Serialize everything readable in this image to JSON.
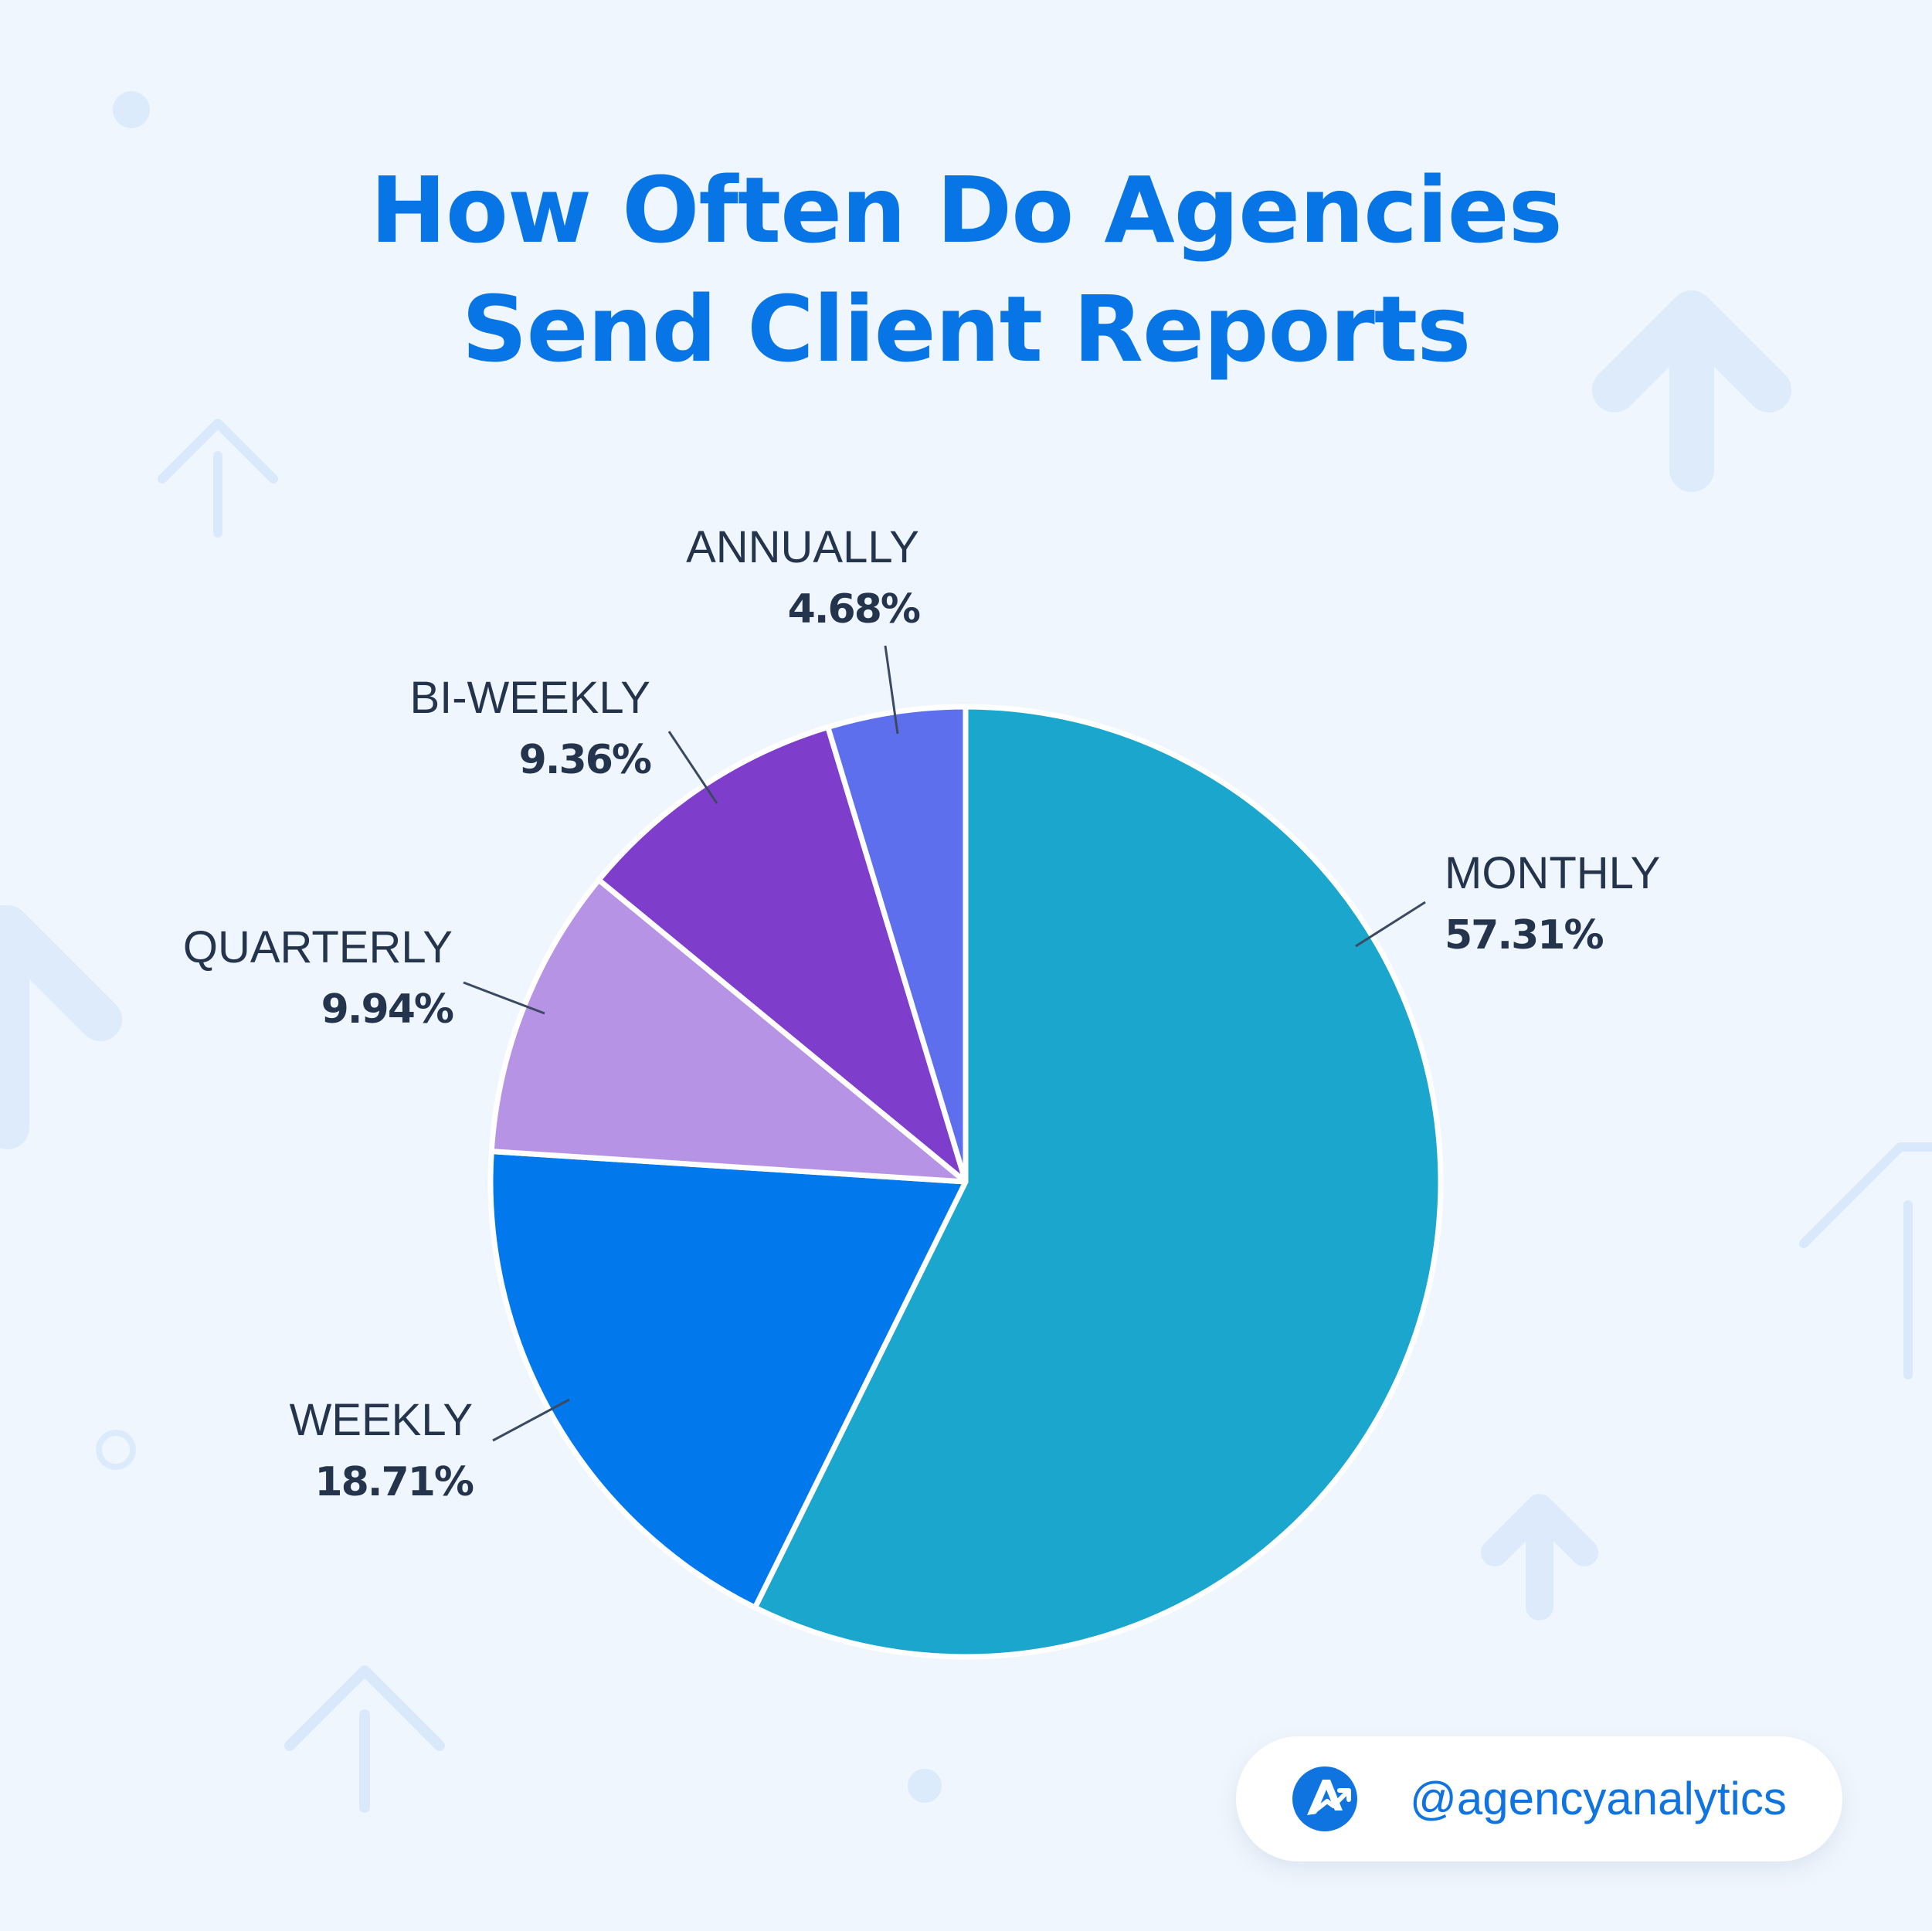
{
  "chart_data": {
    "type": "pie",
    "title_lines": [
      "How Often Do Agencies",
      "Send Client Reports"
    ],
    "slices": [
      {
        "label": "MONTHLY",
        "value": 57.31,
        "display": "57.31%",
        "color": "#1ba6cd"
      },
      {
        "label": "WEEKLY",
        "value": 18.71,
        "display": "18.71%",
        "color": "#0178ec"
      },
      {
        "label": "QUARTERLY",
        "value": 9.94,
        "display": "9.94%",
        "color": "#b693e4"
      },
      {
        "label": "BI-WEEKLY",
        "value": 9.36,
        "display": "9.36%",
        "color": "#7e3ecb"
      },
      {
        "label": "ANNUALLY",
        "value": 4.68,
        "display": "4.68%",
        "color": "#5e6fee"
      }
    ],
    "start_angle_deg": 0,
    "direction": "clockwise",
    "legend": "none"
  },
  "badge": {
    "handle": "@agencyanalytics",
    "logo_icon": "agencyanalytics-logo-icon",
    "logo_color": "#1074e0"
  },
  "background": {
    "color": "#f0f6fd",
    "decoration_icon": "up-arrow-icon",
    "decoration_color": "#d9e9fb"
  }
}
